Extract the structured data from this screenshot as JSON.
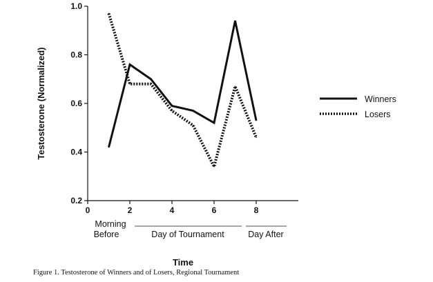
{
  "chart_data": {
    "type": "line",
    "caption": "Figure 1.  Testosterone of Winners and of Losers, Regional Tournament",
    "xlabel": "Time",
    "ylabel": "Testosterone   (Normalized)",
    "xlim": [
      0,
      10
    ],
    "ylim": [
      0.2,
      1.0
    ],
    "x_ticks": [
      0,
      2,
      4,
      6,
      8
    ],
    "y_ticks": [
      0.2,
      0.4,
      0.6,
      0.8,
      1.0
    ],
    "y_tick_labels": [
      "0.2",
      "0.4",
      "0.6",
      "0.8",
      "1.0"
    ],
    "period_labels": {
      "morning_line1": "Morning",
      "morning_line2": "Before",
      "day_of": "Day of Tournament",
      "day_after": "Day After"
    },
    "legend_position": "right",
    "series": [
      {
        "name": "Winners",
        "style": "solid",
        "color": "#111111",
        "x": [
          1,
          2,
          3,
          4,
          5,
          6,
          7,
          8
        ],
        "y": [
          0.42,
          0.76,
          0.7,
          0.59,
          0.57,
          0.52,
          0.94,
          0.53
        ]
      },
      {
        "name": "Losers",
        "style": "dotted",
        "color": "#111111",
        "x": [
          1,
          2,
          3,
          4,
          5,
          6,
          7,
          8
        ],
        "y": [
          0.97,
          0.68,
          0.68,
          0.57,
          0.51,
          0.34,
          0.67,
          0.46
        ]
      }
    ]
  }
}
